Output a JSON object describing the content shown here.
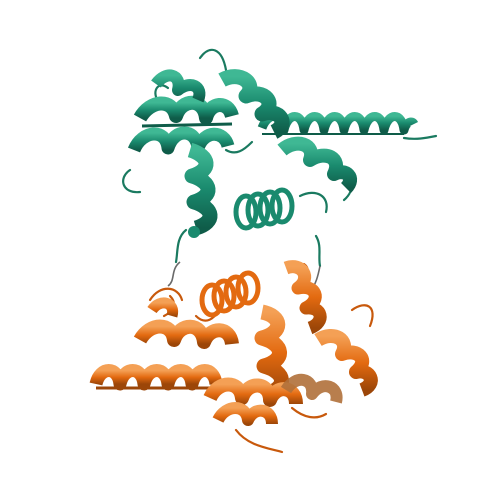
{
  "scene": {
    "subject": "protein-cartoon-ribbon",
    "background_color": "#ffffff",
    "chains": [
      {
        "id": "upper-domain",
        "color": "#1a8a6e",
        "shade_color": "#0f5c49",
        "highlight_color": "#3fb894"
      },
      {
        "id": "lower-domain",
        "color": "#e36a10",
        "shade_color": "#9c4608",
        "highlight_color": "#f4a055"
      }
    ],
    "linker_color": "#6a6a6a"
  }
}
